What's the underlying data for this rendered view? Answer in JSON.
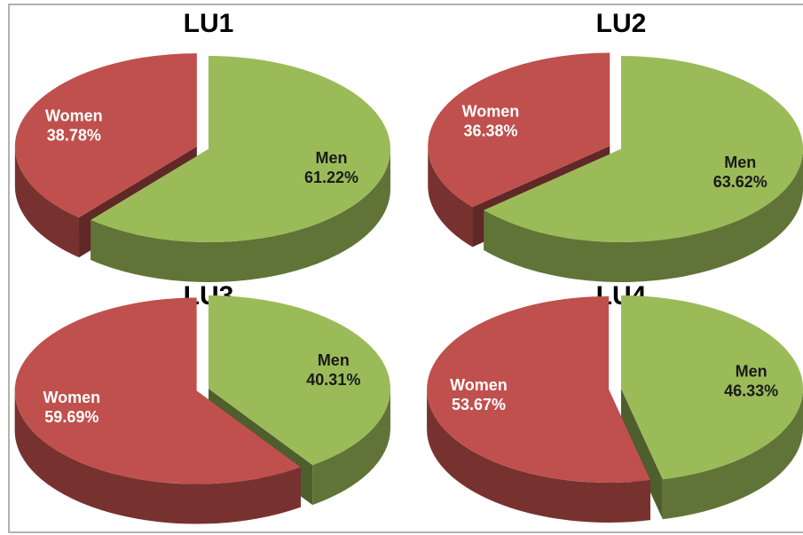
{
  "chart_data": [
    {
      "type": "pie",
      "title": "LU1",
      "categories": [
        "Men",
        "Women"
      ],
      "values": [
        61.22,
        38.78
      ],
      "value_labels": [
        "61.22%",
        "38.78%"
      ],
      "colors": [
        "#9bbb59",
        "#c0504d"
      ]
    },
    {
      "type": "pie",
      "title": "LU2",
      "categories": [
        "Men",
        "Women"
      ],
      "values": [
        63.62,
        36.38
      ],
      "value_labels": [
        "63.62%",
        "36.38%"
      ],
      "colors": [
        "#9bbb59",
        "#c0504d"
      ]
    },
    {
      "type": "pie",
      "title": "LU3",
      "categories": [
        "Men",
        "Women"
      ],
      "values": [
        40.31,
        59.69
      ],
      "value_labels": [
        "40.31%",
        "59.69%"
      ],
      "colors": [
        "#9bbb59",
        "#c0504d"
      ]
    },
    {
      "type": "pie",
      "title": "LU4",
      "categories": [
        "Men",
        "Women"
      ],
      "values": [
        46.33,
        53.67
      ],
      "value_labels": [
        "46.33%",
        "53.67%"
      ],
      "colors": [
        "#9bbb59",
        "#c0504d"
      ]
    }
  ]
}
